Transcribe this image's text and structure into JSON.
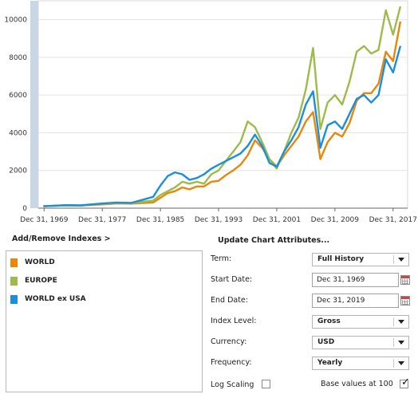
{
  "chart_data": {
    "type": "line",
    "y_ticks": [
      "0",
      "2000",
      "4000",
      "6000",
      "8000",
      "10000"
    ],
    "x_ticks": [
      "Dec 31, 1969",
      "Dec 31, 1977",
      "Dec 31, 1985",
      "Dec 31, 1993",
      "Dec 31, 2001",
      "Dec 31, 2009",
      "Dec 31, 2017"
    ],
    "ylim": [
      0,
      11000
    ],
    "xlim": [
      1969.2,
      2020.0
    ],
    "grid": true,
    "series": [
      {
        "name": "WORLD",
        "color": "#e8870a",
        "points": [
          [
            1969.9,
            100
          ],
          [
            1973,
            150
          ],
          [
            1975,
            140
          ],
          [
            1978,
            200
          ],
          [
            1980,
            250
          ],
          [
            1982,
            240
          ],
          [
            1985,
            300
          ],
          [
            1986,
            550
          ],
          [
            1987,
            800
          ],
          [
            1988,
            900
          ],
          [
            1989,
            1100
          ],
          [
            1990,
            1000
          ],
          [
            1991,
            1150
          ],
          [
            1992,
            1150
          ],
          [
            1993,
            1400
          ],
          [
            1994,
            1450
          ],
          [
            1995,
            1750
          ],
          [
            1996,
            2000
          ],
          [
            1997,
            2300
          ],
          [
            1998,
            2800
          ],
          [
            1999,
            3600
          ],
          [
            2000,
            3200
          ],
          [
            2001,
            2600
          ],
          [
            2002,
            2200
          ],
          [
            2003,
            2800
          ],
          [
            2004,
            3300
          ],
          [
            2005,
            3800
          ],
          [
            2006,
            4600
          ],
          [
            2007,
            5100
          ],
          [
            2008,
            2600
          ],
          [
            2009,
            3500
          ],
          [
            2010,
            4000
          ],
          [
            2011,
            3800
          ],
          [
            2012,
            4500
          ],
          [
            2013,
            5700
          ],
          [
            2014,
            6100
          ],
          [
            2015,
            6100
          ],
          [
            2016,
            6600
          ],
          [
            2017,
            8300
          ],
          [
            2018,
            7800
          ],
          [
            2019,
            9900
          ]
        ]
      },
      {
        "name": "EUROPE",
        "color": "#9dbb4a",
        "points": [
          [
            1969.9,
            100
          ],
          [
            1973,
            150
          ],
          [
            1975,
            140
          ],
          [
            1978,
            230
          ],
          [
            1980,
            280
          ],
          [
            1982,
            270
          ],
          [
            1985,
            400
          ],
          [
            1986,
            700
          ],
          [
            1987,
            900
          ],
          [
            1988,
            1100
          ],
          [
            1989,
            1400
          ],
          [
            1990,
            1300
          ],
          [
            1991,
            1400
          ],
          [
            1992,
            1300
          ],
          [
            1993,
            1800
          ],
          [
            1994,
            2000
          ],
          [
            1995,
            2500
          ],
          [
            1996,
            3000
          ],
          [
            1997,
            3500
          ],
          [
            1998,
            4600
          ],
          [
            1999,
            4300
          ],
          [
            2000,
            3500
          ],
          [
            2001,
            2600
          ],
          [
            2002,
            2100
          ],
          [
            2003,
            3000
          ],
          [
            2004,
            4000
          ],
          [
            2005,
            4800
          ],
          [
            2006,
            6300
          ],
          [
            2007,
            8500
          ],
          [
            2008,
            4200
          ],
          [
            2009,
            5600
          ],
          [
            2010,
            6000
          ],
          [
            2011,
            5500
          ],
          [
            2012,
            6700
          ],
          [
            2013,
            8300
          ],
          [
            2014,
            8600
          ],
          [
            2015,
            8200
          ],
          [
            2016,
            8400
          ],
          [
            2017,
            10500
          ],
          [
            2018,
            9200
          ],
          [
            2019,
            10700
          ]
        ]
      },
      {
        "name": "WORLD ex USA",
        "color": "#1b8fdb",
        "points": [
          [
            1969.9,
            100
          ],
          [
            1973,
            160
          ],
          [
            1975,
            150
          ],
          [
            1978,
            250
          ],
          [
            1980,
            300
          ],
          [
            1982,
            280
          ],
          [
            1985,
            600
          ],
          [
            1986,
            1200
          ],
          [
            1987,
            1700
          ],
          [
            1988,
            1900
          ],
          [
            1989,
            1800
          ],
          [
            1990,
            1500
          ],
          [
            1991,
            1600
          ],
          [
            1992,
            1800
          ],
          [
            1993,
            2100
          ],
          [
            1994,
            2300
          ],
          [
            1995,
            2500
          ],
          [
            1996,
            2700
          ],
          [
            1997,
            2900
          ],
          [
            1998,
            3300
          ],
          [
            1999,
            3900
          ],
          [
            2000,
            3300
          ],
          [
            2001,
            2400
          ],
          [
            2002,
            2200
          ],
          [
            2003,
            3000
          ],
          [
            2004,
            3600
          ],
          [
            2005,
            4300
          ],
          [
            2006,
            5500
          ],
          [
            2007,
            6200
          ],
          [
            2008,
            3200
          ],
          [
            2009,
            4400
          ],
          [
            2010,
            4600
          ],
          [
            2011,
            4200
          ],
          [
            2012,
            5000
          ],
          [
            2013,
            5800
          ],
          [
            2014,
            6000
          ],
          [
            2015,
            5600
          ],
          [
            2016,
            6000
          ],
          [
            2017,
            7900
          ],
          [
            2018,
            7200
          ],
          [
            2019,
            8600
          ]
        ]
      }
    ]
  },
  "panel": {
    "add_remove_label": "Add/Remove Indexes >",
    "update_label": "Update Chart Attributes..."
  },
  "indexes": [
    {
      "label": "WORLD",
      "color": "#e8870a"
    },
    {
      "label": "EUROPE",
      "color": "#9dbb4a"
    },
    {
      "label": "WORLD ex USA",
      "color": "#1b8fdb"
    }
  ],
  "attributes": {
    "term_label": "Term:",
    "term_value": "Full History",
    "start_label": "Start Date:",
    "start_value": "Dec 31, 1969",
    "end_label": "End Date:",
    "end_value": "Dec 31, 2019",
    "index_level_label": "Index Level:",
    "index_level_value": "Gross",
    "currency_label": "Currency:",
    "currency_value": "USD",
    "frequency_label": "Frequency:",
    "frequency_value": "Yearly",
    "log_scaling_label": "Log Scaling",
    "log_scaling_checked": false,
    "base_values_label": "Base values at 100",
    "base_values_checked": true
  }
}
